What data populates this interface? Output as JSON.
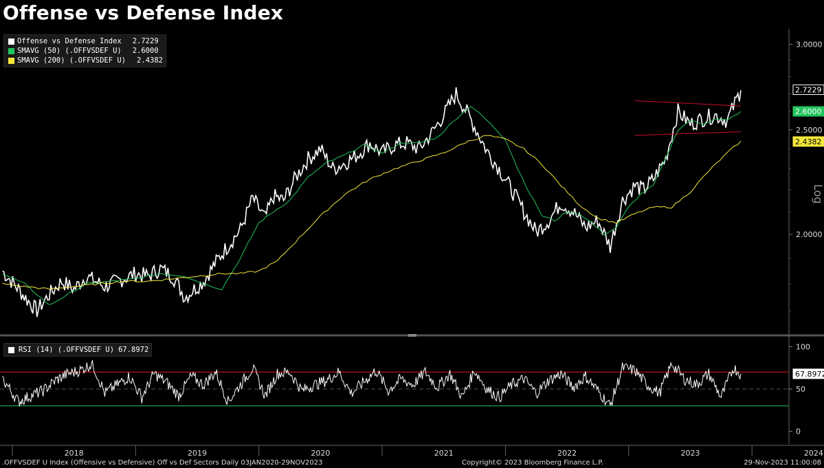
{
  "title": "Offense vs Defense Index",
  "legend": [
    {
      "label": "Offense vs Defense Index",
      "value": "2.7229",
      "color": "#ffffff"
    },
    {
      "label": "SMAVG (50) (.OFFVSDEF U)",
      "value": "2.6000",
      "color": "#22c55e"
    },
    {
      "label": "SMAVG (200) (.OFFVSDEF U)",
      "value": "2.4382",
      "color": "#f5e83a"
    }
  ],
  "rsi_legend": {
    "label": "RSI (14) (.OFFVSDEF U)",
    "value": "67.8972",
    "color": "#ffffff"
  },
  "right_labels": {
    "axis_scale": "Log"
  },
  "footer": {
    "left": ".OFFVSDEF U Index (Offensive vs Defensive) Off vs Def Sectors  Daily 03JAN2020-29NOV2023",
    "center": "Copyright© 2023 Bloomberg Finance L.P.",
    "right": "29-Nov-2023 11:00:08"
  },
  "chart_data": [
    {
      "type": "line",
      "scale": "log",
      "y_ticks": [
        "3.0000",
        "2.5000",
        "2.0000"
      ],
      "y_tick_values": [
        3.0,
        2.5,
        2.0
      ],
      "ylim": [
        1.62,
        3.1
      ],
      "x_ticks": [
        "2018",
        "2019",
        "2020",
        "2021",
        "2022",
        "2023",
        "2024"
      ],
      "x_tick_years": [
        2018,
        2019,
        2020,
        2021,
        2022,
        2023,
        2024
      ],
      "xlim": [
        2017.9,
        2024.3
      ],
      "series": [
        {
          "name": "Offense vs Defense Index",
          "color": "#ffffff",
          "x": [
            2017.92,
            2018.05,
            2018.12,
            2018.2,
            2018.3,
            2018.4,
            2018.5,
            2018.6,
            2018.75,
            2018.9,
            2019.0,
            2019.1,
            2019.2,
            2019.3,
            2019.4,
            2019.55,
            2019.7,
            2019.85,
            2019.95,
            2020.05,
            2020.12,
            2020.2,
            2020.3,
            2020.4,
            2020.5,
            2020.6,
            2020.7,
            2020.8,
            2020.9,
            2021.0,
            2021.1,
            2021.2,
            2021.3,
            2021.4,
            2021.5,
            2021.6,
            2021.7,
            2021.85,
            2021.95,
            2022.05,
            2022.15,
            2022.25,
            2022.35,
            2022.45,
            2022.55,
            2022.65,
            2022.75,
            2022.85,
            2022.95,
            2023.05,
            2023.12,
            2023.2,
            2023.3,
            2023.4,
            2023.5,
            2023.6,
            2023.7,
            2023.8,
            2023.91
          ],
          "y": [
            1.85,
            1.78,
            1.74,
            1.7,
            1.76,
            1.81,
            1.78,
            1.83,
            1.79,
            1.82,
            1.84,
            1.83,
            1.86,
            1.83,
            1.75,
            1.81,
            1.92,
            2.02,
            2.16,
            2.07,
            2.17,
            2.15,
            2.26,
            2.35,
            2.4,
            2.3,
            2.33,
            2.37,
            2.43,
            2.38,
            2.42,
            2.43,
            2.4,
            2.48,
            2.58,
            2.7,
            2.58,
            2.39,
            2.3,
            2.2,
            2.1,
            2.01,
            2.06,
            2.14,
            2.1,
            2.03,
            2.06,
            1.95,
            2.15,
            2.22,
            2.2,
            2.25,
            2.35,
            2.6,
            2.53,
            2.56,
            2.58,
            2.55,
            2.72
          ]
        },
        {
          "name": "SMAVG (50) (.OFFVSDEF U)",
          "color": "#22c55e",
          "x": [
            2017.92,
            2018.1,
            2018.2,
            2018.3,
            2018.45,
            2018.6,
            2018.8,
            2019.0,
            2019.2,
            2019.4,
            2019.55,
            2019.7,
            2019.85,
            2020.0,
            2020.12,
            2020.25,
            2020.4,
            2020.55,
            2020.7,
            2020.85,
            2021.0,
            2021.15,
            2021.3,
            2021.45,
            2021.6,
            2021.72,
            2021.85,
            2022.0,
            2022.1,
            2022.2,
            2022.3,
            2022.4,
            2022.5,
            2022.6,
            2022.7,
            2022.8,
            2022.9,
            2023.0,
            2023.1,
            2023.2,
            2023.3,
            2023.4,
            2023.5,
            2023.6,
            2023.7,
            2023.8,
            2023.91
          ],
          "y": [
            1.84,
            1.8,
            1.76,
            1.72,
            1.76,
            1.8,
            1.81,
            1.82,
            1.84,
            1.83,
            1.8,
            1.78,
            1.9,
            2.05,
            2.1,
            2.15,
            2.26,
            2.33,
            2.37,
            2.42,
            2.38,
            2.43,
            2.43,
            2.46,
            2.56,
            2.63,
            2.55,
            2.45,
            2.3,
            2.18,
            2.08,
            2.06,
            2.1,
            2.09,
            2.05,
            2.0,
            2.03,
            2.12,
            2.18,
            2.22,
            2.35,
            2.5,
            2.55,
            2.53,
            2.56,
            2.55,
            2.6
          ]
        },
        {
          "name": "SMAVG (200) (.OFFVSDEF U)",
          "color": "#f5e83a",
          "x": [
            2017.92,
            2018.1,
            2018.3,
            2018.5,
            2018.7,
            2018.9,
            2019.1,
            2019.3,
            2019.5,
            2019.7,
            2019.85,
            2020.0,
            2020.15,
            2020.3,
            2020.5,
            2020.7,
            2020.9,
            2021.1,
            2021.3,
            2021.5,
            2021.7,
            2021.85,
            2022.0,
            2022.15,
            2022.3,
            2022.45,
            2022.6,
            2022.75,
            2022.9,
            2023.05,
            2023.2,
            2023.35,
            2023.5,
            2023.65,
            2023.8,
            2023.91
          ],
          "y": [
            1.8,
            1.79,
            1.78,
            1.79,
            1.8,
            1.81,
            1.81,
            1.82,
            1.83,
            1.84,
            1.84,
            1.85,
            1.89,
            1.97,
            2.08,
            2.18,
            2.25,
            2.3,
            2.34,
            2.38,
            2.44,
            2.47,
            2.45,
            2.4,
            2.32,
            2.22,
            2.13,
            2.07,
            2.05,
            2.09,
            2.12,
            2.12,
            2.19,
            2.29,
            2.38,
            2.44
          ]
        },
        {
          "name": "channel-upper",
          "color": "#c8102e",
          "x": [
            2023.05,
            2023.91
          ],
          "y": [
            2.66,
            2.63
          ]
        },
        {
          "name": "channel-lower",
          "color": "#c8102e",
          "x": [
            2023.05,
            2023.91
          ],
          "y": [
            2.47,
            2.49
          ]
        }
      ],
      "value_tags": [
        {
          "text": "2.7229",
          "y": 2.7229,
          "bg": "#000000",
          "fg": "#ffffff",
          "border": "#ffffff"
        },
        {
          "text": "2.6000",
          "y": 2.6,
          "bg": "#22c55e",
          "fg": "#ffffff",
          "border": "#22c55e"
        },
        {
          "text": "2.4382",
          "y": 2.4382,
          "bg": "#f5e83a",
          "fg": "#000000",
          "border": "#f5e83a"
        }
      ]
    },
    {
      "type": "line",
      "y_ticks": [
        "100",
        "50",
        "0"
      ],
      "y_tick_values": [
        100,
        50,
        0
      ],
      "ylim": [
        -10,
        110
      ],
      "reference_lines": [
        {
          "value": 70,
          "color": "#e31b23"
        },
        {
          "value": 50,
          "color": "#555555",
          "style": "dashed"
        },
        {
          "value": 30,
          "color": "#22c55e"
        }
      ],
      "series": [
        {
          "name": "RSI (14) (.OFFVSDEF U)",
          "color": "#ffffff",
          "x": [
            2017.92,
            2018.05,
            2018.15,
            2018.25,
            2018.35,
            2018.45,
            2018.55,
            2018.65,
            2018.75,
            2018.85,
            2018.95,
            2019.05,
            2019.15,
            2019.25,
            2019.35,
            2019.45,
            2019.55,
            2019.65,
            2019.75,
            2019.85,
            2019.95,
            2020.05,
            2020.15,
            2020.25,
            2020.35,
            2020.45,
            2020.55,
            2020.65,
            2020.75,
            2020.85,
            2020.95,
            2021.05,
            2021.15,
            2021.25,
            2021.35,
            2021.45,
            2021.55,
            2021.65,
            2021.75,
            2021.85,
            2021.95,
            2022.05,
            2022.15,
            2022.25,
            2022.35,
            2022.45,
            2022.55,
            2022.65,
            2022.75,
            2022.85,
            2022.95,
            2023.05,
            2023.15,
            2023.25,
            2023.35,
            2023.45,
            2023.55,
            2023.65,
            2023.75,
            2023.85,
            2023.91
          ],
          "y": [
            62,
            35,
            42,
            48,
            60,
            68,
            72,
            80,
            45,
            55,
            65,
            40,
            68,
            58,
            42,
            65,
            55,
            70,
            35,
            55,
            75,
            42,
            68,
            70,
            48,
            55,
            60,
            70,
            45,
            58,
            72,
            48,
            62,
            55,
            70,
            52,
            68,
            40,
            72,
            50,
            40,
            55,
            62,
            45,
            60,
            68,
            52,
            65,
            48,
            30,
            75,
            72,
            55,
            45,
            80,
            62,
            55,
            68,
            40,
            75,
            68
          ]
        }
      ],
      "value_tags": [
        {
          "text": "67.8972",
          "y": 67.8972,
          "bg": "#ffffff",
          "fg": "#000000",
          "border": "#ffffff"
        }
      ]
    }
  ]
}
